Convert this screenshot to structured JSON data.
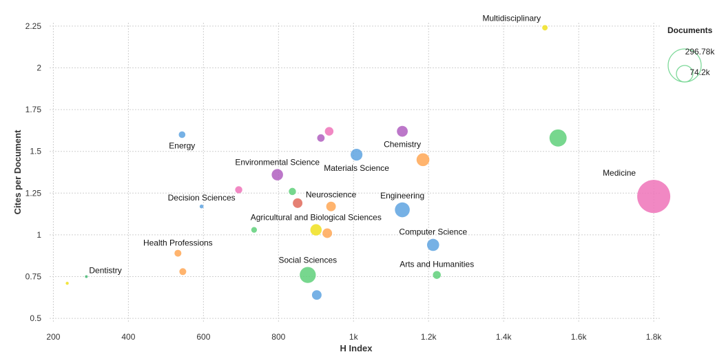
{
  "chart_data": {
    "type": "scatter",
    "subtype": "bubble",
    "xlabel": "H Index",
    "ylabel": "Cites per Document",
    "xlim": [
      190,
      1820
    ],
    "ylim": [
      0.48,
      2.27
    ],
    "x_ticks": [
      {
        "v": 200,
        "label": "200"
      },
      {
        "v": 400,
        "label": "400"
      },
      {
        "v": 600,
        "label": "600"
      },
      {
        "v": 800,
        "label": "800"
      },
      {
        "v": 1000,
        "label": "1k"
      },
      {
        "v": 1200,
        "label": "1.2k"
      },
      {
        "v": 1400,
        "label": "1.4k"
      },
      {
        "v": 1600,
        "label": "1.6k"
      },
      {
        "v": 1800,
        "label": "1.8k"
      }
    ],
    "y_ticks": [
      {
        "v": 0.5,
        "label": "0.5"
      },
      {
        "v": 0.75,
        "label": "0.75"
      },
      {
        "v": 1,
        "label": "1"
      },
      {
        "v": 1.25,
        "label": "1.25"
      },
      {
        "v": 1.5,
        "label": "1.5"
      },
      {
        "v": 1.75,
        "label": "1.75"
      },
      {
        "v": 2,
        "label": "2"
      },
      {
        "v": 2.25,
        "label": "2.25"
      }
    ],
    "grid": true,
    "legend": {
      "title": "Documents",
      "position": "top-right",
      "entries": [
        {
          "label": "296.78k",
          "value": 296780
        },
        {
          "label": "74.2k",
          "value": 74200
        }
      ]
    },
    "size_max_value": 296780,
    "points": [
      {
        "x": 1510,
        "y": 2.24,
        "size": 8000,
        "color": "#f0e01e",
        "label": "Multidisciplinary",
        "label_pos": "left-above"
      },
      {
        "x": 543,
        "y": 1.6,
        "size": 12000,
        "color": "#5ea3e0",
        "label": "Energy",
        "label_pos": "below"
      },
      {
        "x": 1545,
        "y": 1.58,
        "size": 80000,
        "color": "#5fd07a",
        "label": "",
        "label_pos": "none"
      },
      {
        "x": 935,
        "y": 1.62,
        "size": 20000,
        "color": "#ee73b9",
        "label": "",
        "label_pos": "none"
      },
      {
        "x": 913,
        "y": 1.58,
        "size": 15000,
        "color": "#b05fbf",
        "label": "",
        "label_pos": "none"
      },
      {
        "x": 1130,
        "y": 1.62,
        "size": 32000,
        "color": "#b05fbf",
        "label": "Chemistry",
        "label_pos": "below"
      },
      {
        "x": 1008,
        "y": 1.48,
        "size": 38000,
        "color": "#5ea3e0",
        "label": "Materials Science",
        "label_pos": "below"
      },
      {
        "x": 1185,
        "y": 1.45,
        "size": 45000,
        "color": "#ffa755",
        "label": "",
        "label_pos": "none"
      },
      {
        "x": 797,
        "y": 1.36,
        "size": 35000,
        "color": "#b05fbf",
        "label": "Environmental Science",
        "label_pos": "above"
      },
      {
        "x": 1800,
        "y": 1.23,
        "size": 296780,
        "color": "#ee73b9",
        "label": "Medicine",
        "label_pos": "left-above"
      },
      {
        "x": 694,
        "y": 1.27,
        "size": 14000,
        "color": "#ee73b9",
        "label": "",
        "label_pos": "none"
      },
      {
        "x": 837,
        "y": 1.26,
        "size": 14000,
        "color": "#5fd07a",
        "label": "",
        "label_pos": "none"
      },
      {
        "x": 851,
        "y": 1.19,
        "size": 25000,
        "color": "#e06a5a",
        "label": "",
        "label_pos": "none"
      },
      {
        "x": 940,
        "y": 1.17,
        "size": 25000,
        "color": "#ffa755",
        "label": "Neuroscience",
        "label_pos": "above"
      },
      {
        "x": 595,
        "y": 1.17,
        "size": 4000,
        "color": "#5ea3e0",
        "label": "Decision Sciences",
        "label_pos": "above"
      },
      {
        "x": 1130,
        "y": 1.15,
        "size": 60000,
        "color": "#5ea3e0",
        "label": "Engineering",
        "label_pos": "above"
      },
      {
        "x": 735,
        "y": 1.03,
        "size": 9000,
        "color": "#5fd07a",
        "label": "",
        "label_pos": "none"
      },
      {
        "x": 900,
        "y": 1.03,
        "size": 35000,
        "color": "#f0e01e",
        "label": "Agricultural and Biological Sciences",
        "label_pos": "above"
      },
      {
        "x": 930,
        "y": 1.01,
        "size": 25000,
        "color": "#ffa755",
        "label": "",
        "label_pos": "none"
      },
      {
        "x": 1212,
        "y": 0.94,
        "size": 40000,
        "color": "#5ea3e0",
        "label": "Computer Science",
        "label_pos": "above"
      },
      {
        "x": 532,
        "y": 0.89,
        "size": 13000,
        "color": "#ffa755",
        "label": "Health Professions",
        "label_pos": "above"
      },
      {
        "x": 545,
        "y": 0.78,
        "size": 13000,
        "color": "#ffa755",
        "label": "",
        "label_pos": "none"
      },
      {
        "x": 878,
        "y": 0.76,
        "size": 70000,
        "color": "#5fd07a",
        "label": "Social Sciences",
        "label_pos": "above"
      },
      {
        "x": 1222,
        "y": 0.76,
        "size": 17000,
        "color": "#5fd07a",
        "label": "Arts and Humanities",
        "label_pos": "above"
      },
      {
        "x": 288,
        "y": 0.75,
        "size": 1000,
        "color": "#47b874",
        "label": "Dentistry",
        "label_pos": "right-above"
      },
      {
        "x": 237,
        "y": 0.71,
        "size": 2500,
        "color": "#f0e01e",
        "label": "",
        "label_pos": "none"
      },
      {
        "x": 902,
        "y": 0.64,
        "size": 25000,
        "color": "#5ea3e0",
        "label": "",
        "label_pos": "none"
      }
    ]
  }
}
